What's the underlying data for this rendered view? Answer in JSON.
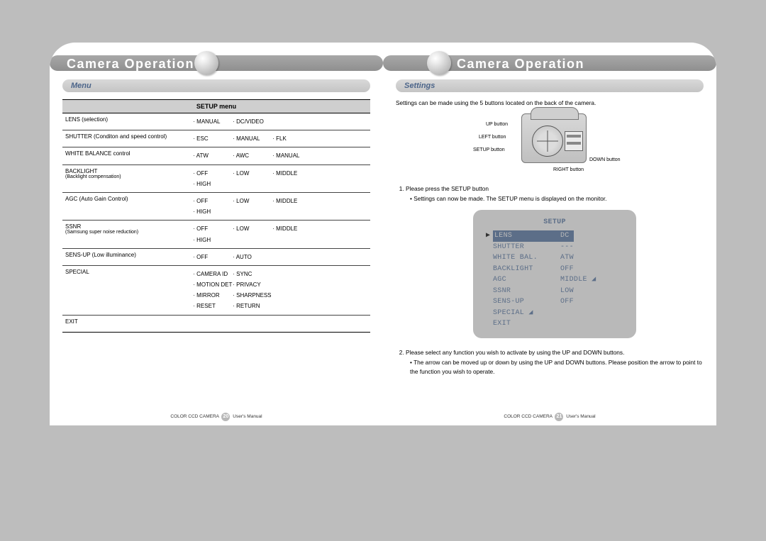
{
  "header": {
    "title": "Camera Operation"
  },
  "leftPage": {
    "sectionLabel": "Menu",
    "tableTitle": "SETUP menu",
    "rows": [
      {
        "name": "LENS (selection)",
        "sub": "",
        "opt_lines": [
          [
            "· MANUAL",
            "· DC/VIDEO"
          ]
        ],
        "cols": "two"
      },
      {
        "name": "SHUTTER (Conditon and speed control)",
        "sub": "",
        "opt_lines": [
          [
            "· ESC",
            "· MANUAL",
            "· FLK"
          ]
        ],
        "cols": "three"
      },
      {
        "name": "WHITE BALANCE control",
        "sub": "",
        "opt_lines": [
          [
            "· ATW",
            "· AWC",
            "· MANUAL"
          ]
        ],
        "cols": "three"
      },
      {
        "name": "BACKLIGHT",
        "sub": "(Backlight compensation)",
        "opt_lines": [
          [
            "· OFF",
            "· LOW",
            "· MIDDLE"
          ],
          [
            "· HIGH",
            "",
            ""
          ]
        ],
        "cols": "three"
      },
      {
        "name": "AGC (Auto Gain Control)",
        "sub": "",
        "opt_lines": [
          [
            "· OFF",
            "· LOW",
            "· MIDDLE"
          ],
          [
            "· HIGH",
            "",
            ""
          ]
        ],
        "cols": "three"
      },
      {
        "name": "SSNR",
        "sub": "(Samsung super noise reduction)",
        "opt_lines": [
          [
            "· OFF",
            "· LOW",
            "· MIDDLE"
          ],
          [
            "· HIGH",
            "",
            ""
          ]
        ],
        "cols": "three"
      },
      {
        "name": "SENS-UP (Low illuminance)",
        "sub": "",
        "opt_lines": [
          [
            "· OFF",
            "· AUTO",
            ""
          ]
        ],
        "cols": "three"
      },
      {
        "name": "SPECIAL",
        "sub": "",
        "opt_lines": [
          [
            "· CAMERA ID",
            "· SYNC"
          ],
          [
            "· MOTION DET",
            "· PRIVACY"
          ],
          [
            "· MIRROR",
            "· SHARPNESS"
          ],
          [
            "· RESET",
            "· RETURN"
          ]
        ],
        "cols": "two"
      },
      {
        "name": "EXIT",
        "sub": "",
        "opt_lines": [
          [
            "",
            ""
          ]
        ],
        "cols": "two"
      }
    ],
    "footer": {
      "pre": "COLOR CCD CAMERA",
      "num": "20",
      "post": "User's Manual"
    }
  },
  "rightPage": {
    "sectionLabel": "Settings",
    "intro": "Settings can be made using the 5 buttons located on the back of the camera.",
    "diagramLabels": {
      "up": "UP button",
      "left": "LEFT button",
      "setup": "SETUP button",
      "right": "RIGHT button",
      "down": "DOWN button"
    },
    "steps": [
      {
        "text": "Please press the SETUP button",
        "subs": [
          "Settings can now be made. The SETUP menu is displayed on the monitor."
        ]
      },
      {
        "text": "Please select any function you wish to activate by using the UP and DOWN buttons.",
        "subs": [
          "The arrow can be moved up or down by using the UP and DOWN buttons. Please position the arrow to point to the function you wish to operate."
        ]
      }
    ],
    "osd": {
      "title": "SETUP",
      "rows": [
        {
          "k": "LENS",
          "v": "DC",
          "selected": true
        },
        {
          "k": "SHUTTER",
          "v": "---"
        },
        {
          "k": "WHITE BAL.",
          "v": "ATW"
        },
        {
          "k": "BACKLIGHT",
          "v": "OFF"
        },
        {
          "k": "AGC",
          "v": "MIDDLE ◢"
        },
        {
          "k": "SSNR",
          "v": "LOW"
        },
        {
          "k": "SENS-UP",
          "v": "OFF"
        },
        {
          "k": "SPECIAL ◢",
          "v": ""
        },
        {
          "k": "EXIT",
          "v": ""
        }
      ]
    },
    "footer": {
      "pre": "COLOR CCD CAMERA",
      "num": "21",
      "post": "User's Manual"
    }
  }
}
